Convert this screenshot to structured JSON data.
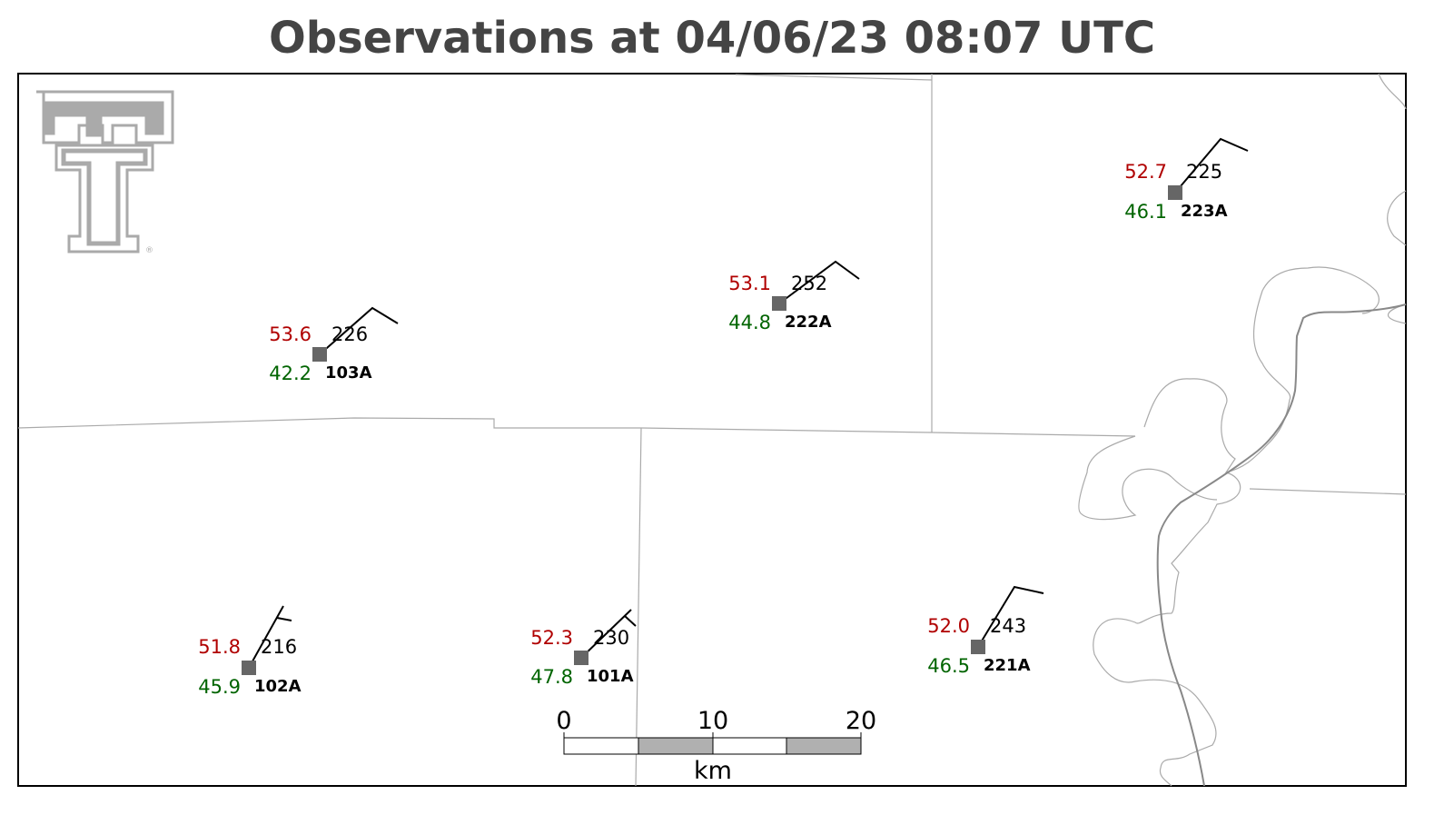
{
  "header": {
    "title": "Observations at 04/06/23 08:07 UTC"
  },
  "stations": [
    {
      "id": "103A",
      "temperature": "53.6",
      "dewpoint": "42.2",
      "pressure": "226"
    },
    {
      "id": "222A",
      "temperature": "53.1",
      "dewpoint": "44.8",
      "pressure": "252"
    },
    {
      "id": "223A",
      "temperature": "52.7",
      "dewpoint": "46.1",
      "pressure": "225"
    },
    {
      "id": "102A",
      "temperature": "51.8",
      "dewpoint": "45.9",
      "pressure": "216"
    },
    {
      "id": "101A",
      "temperature": "52.3",
      "dewpoint": "47.8",
      "pressure": "230"
    },
    {
      "id": "221A",
      "temperature": "52.0",
      "dewpoint": "46.5",
      "pressure": "243"
    }
  ],
  "scale_bar": {
    "ticks": [
      "0",
      "10",
      "20"
    ],
    "unit": "km"
  }
}
